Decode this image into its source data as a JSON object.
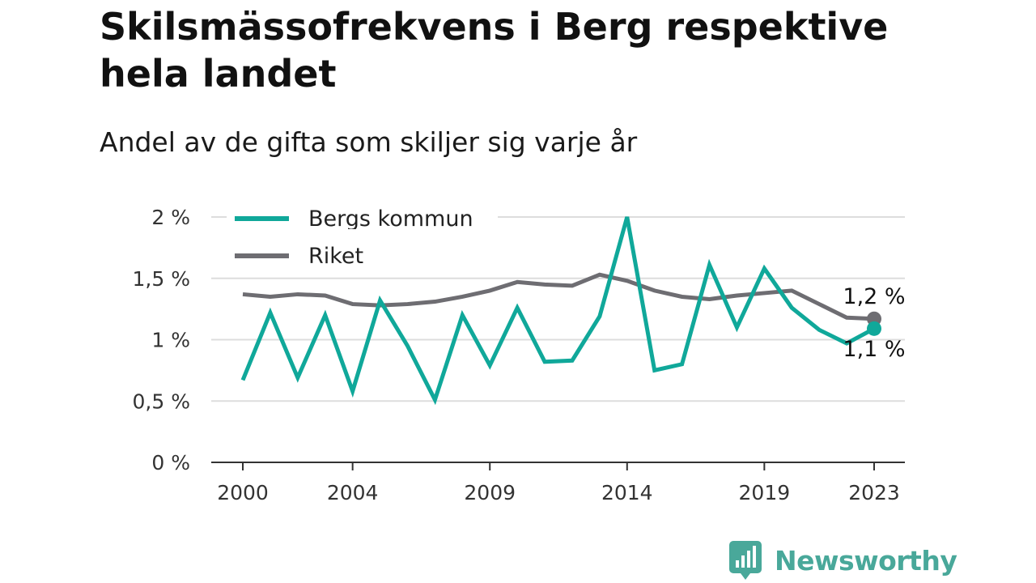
{
  "title": "Skilsmässofrekvens i Berg respektive hela landet",
  "subtitle": "Andel av de gifta som skiljer sig varje år",
  "brand": {
    "name": "Newsworthy"
  },
  "colors": {
    "berg": "#10a89a",
    "riket": "#6e6d72",
    "grid": "#dddddd",
    "axis": "#333333",
    "brand": "#49a89a"
  },
  "chart_data": {
    "type": "line",
    "title": "Skilsmässofrekvens i Berg respektive hela landet",
    "subtitle": "Andel av de gifta som skiljer sig varje år",
    "xlabel": "",
    "ylabel": "",
    "ylim": [
      0,
      2
    ],
    "xlim": [
      2000,
      2023
    ],
    "y_ticks": [
      0,
      0.5,
      1,
      1.5,
      2
    ],
    "y_tick_labels": [
      "0 %",
      "0,5 %",
      "1 %",
      "1,5 %",
      "2 %"
    ],
    "x_ticks": [
      2000,
      2004,
      2009,
      2014,
      2019,
      2023
    ],
    "x_tick_labels": [
      "2000",
      "2004",
      "2009",
      "2014",
      "2019",
      "2023"
    ],
    "grid": true,
    "legend_position": "top-left",
    "x": [
      2000,
      2001,
      2002,
      2003,
      2004,
      2005,
      2006,
      2007,
      2008,
      2009,
      2010,
      2011,
      2012,
      2013,
      2014,
      2015,
      2016,
      2017,
      2018,
      2019,
      2020,
      2021,
      2022,
      2023
    ],
    "series": [
      {
        "name": "Bergs kommun",
        "color": "#10a89a",
        "values": [
          0.67,
          1.22,
          0.69,
          1.2,
          0.58,
          1.32,
          0.95,
          0.51,
          1.2,
          0.79,
          1.26,
          0.82,
          0.83,
          1.19,
          2.0,
          0.75,
          0.8,
          1.61,
          1.1,
          1.58,
          1.26,
          1.08,
          0.97,
          1.09
        ],
        "end_label": "1,1 %"
      },
      {
        "name": "Riket",
        "color": "#6e6d72",
        "values": [
          1.37,
          1.35,
          1.37,
          1.36,
          1.29,
          1.28,
          1.29,
          1.31,
          1.35,
          1.4,
          1.47,
          1.45,
          1.44,
          1.53,
          1.48,
          1.4,
          1.35,
          1.33,
          1.36,
          1.38,
          1.4,
          1.29,
          1.18,
          1.17
        ],
        "end_label": "1,2 %"
      }
    ]
  }
}
